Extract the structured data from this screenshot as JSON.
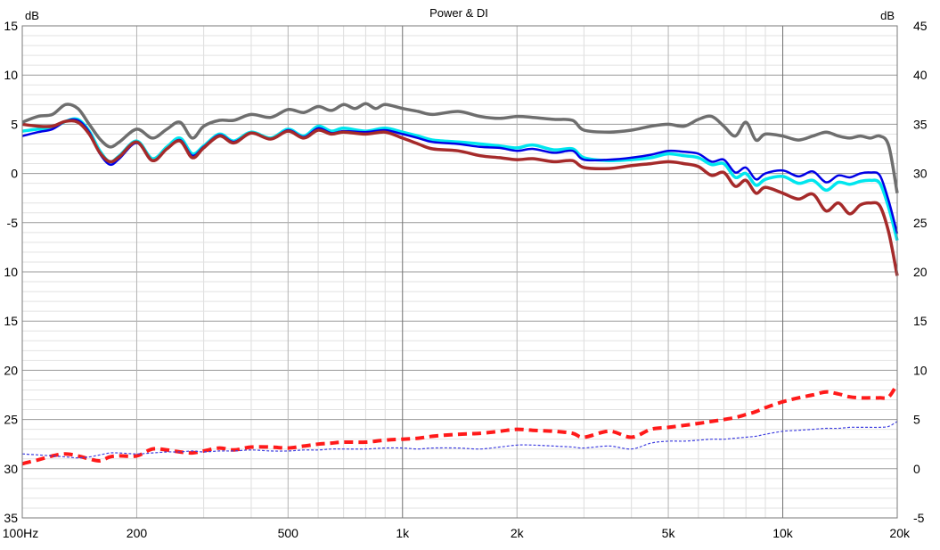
{
  "chart_data": {
    "type": "line",
    "title": "Power & DI",
    "left_unit": "dB",
    "right_unit": "dB",
    "x_scale": "log",
    "xlim": [
      100,
      20000
    ],
    "ylim_left": [
      -35,
      15
    ],
    "ylim_right": [
      -5,
      45
    ],
    "grid": true,
    "x_ticks": [
      {
        "value": 100,
        "label": "100Hz"
      },
      {
        "value": 200,
        "label": "200"
      },
      {
        "value": 500,
        "label": "500"
      },
      {
        "value": 1000,
        "label": "1k"
      },
      {
        "value": 2000,
        "label": "2k"
      },
      {
        "value": 5000,
        "label": "5k"
      },
      {
        "value": 10000,
        "label": "10k"
      },
      {
        "value": 20000,
        "label": "20k"
      }
    ],
    "left_ticks": [
      {
        "value": 15,
        "label": "15"
      },
      {
        "value": 10,
        "label": "10"
      },
      {
        "value": 5,
        "label": "5"
      },
      {
        "value": 0,
        "label": "0"
      },
      {
        "value": -5,
        "label": "-5"
      },
      {
        "value": -10,
        "label": "10"
      },
      {
        "value": -15,
        "label": "15"
      },
      {
        "value": -20,
        "label": "20"
      },
      {
        "value": -25,
        "label": "25"
      },
      {
        "value": -30,
        "label": "30"
      },
      {
        "value": -35,
        "label": "35"
      }
    ],
    "right_ticks": [
      {
        "value": 45,
        "label": "45"
      },
      {
        "value": 40,
        "label": "40"
      },
      {
        "value": 35,
        "label": "35"
      },
      {
        "value": 30,
        "label": "30"
      },
      {
        "value": 25,
        "label": "25"
      },
      {
        "value": 20,
        "label": "20"
      },
      {
        "value": 15,
        "label": "15"
      },
      {
        "value": 10,
        "label": "10"
      },
      {
        "value": 5,
        "label": "5"
      },
      {
        "value": 0,
        "label": "0"
      },
      {
        "value": -5,
        "label": "-5"
      }
    ],
    "series": [
      {
        "color": "#00e6ee",
        "width": 3.5,
        "dash": "",
        "axis": "left",
        "x": [
          100,
          110,
          120,
          130,
          140,
          150,
          160,
          170,
          180,
          200,
          220,
          240,
          260,
          280,
          300,
          330,
          360,
          400,
          450,
          500,
          550,
          600,
          650,
          700,
          800,
          900,
          1000,
          1100,
          1200,
          1400,
          1600,
          1800,
          2000,
          2200,
          2500,
          2800,
          3000,
          3500,
          4000,
          4500,
          5000,
          5500,
          6000,
          6500,
          7000,
          7500,
          8000,
          8500,
          9000,
          10000,
          11000,
          12000,
          13000,
          14000,
          15000,
          16000,
          17000,
          18000,
          19000,
          20000
        ],
        "y": [
          4.3,
          4.5,
          4.6,
          5.3,
          5.5,
          4.3,
          2.3,
          1.2,
          1.8,
          3.3,
          1.5,
          2.7,
          3.6,
          2.0,
          2.8,
          4.0,
          3.3,
          4.2,
          3.6,
          4.5,
          3.8,
          4.8,
          4.3,
          4.6,
          4.3,
          4.6,
          4.2,
          3.8,
          3.4,
          3.2,
          3.0,
          2.8,
          2.6,
          2.9,
          2.4,
          2.5,
          1.6,
          1.3,
          1.4,
          1.6,
          2.0,
          1.8,
          1.6,
          0.9,
          1.0,
          -0.4,
          0.0,
          -1.2,
          -0.6,
          -0.3,
          -1.0,
          -0.7,
          -1.7,
          -0.9,
          -1.1,
          -0.8,
          -0.7,
          -1.0,
          -3.5,
          -6.8
        ]
      },
      {
        "color": "#0000e6",
        "width": 2.5,
        "dash": "",
        "axis": "left",
        "x": [
          100,
          110,
          120,
          130,
          140,
          150,
          160,
          170,
          180,
          200,
          220,
          240,
          260,
          280,
          300,
          330,
          360,
          400,
          450,
          500,
          550,
          600,
          650,
          700,
          800,
          900,
          1000,
          1100,
          1200,
          1400,
          1600,
          1800,
          2000,
          2200,
          2500,
          2800,
          3000,
          3500,
          4000,
          4500,
          5000,
          5500,
          6000,
          6500,
          7000,
          7500,
          8000,
          8500,
          9000,
          10000,
          11000,
          12000,
          13000,
          14000,
          15000,
          16000,
          17000,
          18000,
          19000,
          20000
        ],
        "y": [
          3.8,
          4.2,
          4.5,
          5.3,
          5.4,
          4.2,
          2.0,
          0.9,
          1.5,
          3.1,
          1.3,
          2.5,
          3.4,
          1.8,
          2.7,
          3.9,
          3.2,
          4.1,
          3.5,
          4.4,
          3.7,
          4.6,
          4.1,
          4.3,
          4.2,
          4.4,
          4.0,
          3.6,
          3.2,
          3.0,
          2.7,
          2.6,
          2.3,
          2.5,
          2.1,
          2.3,
          1.4,
          1.4,
          1.6,
          1.9,
          2.3,
          2.2,
          2.0,
          1.2,
          1.4,
          0.1,
          0.6,
          -0.6,
          0.0,
          0.3,
          -0.3,
          0.2,
          -0.9,
          -0.2,
          -0.4,
          0.0,
          0.1,
          -0.2,
          -2.8,
          -6.1
        ]
      },
      {
        "color": "#a52a2a",
        "width": 3.5,
        "dash": "",
        "axis": "left",
        "x": [
          100,
          110,
          120,
          130,
          140,
          150,
          160,
          170,
          180,
          200,
          220,
          240,
          260,
          280,
          300,
          330,
          360,
          400,
          450,
          500,
          550,
          600,
          650,
          700,
          800,
          900,
          1000,
          1100,
          1200,
          1400,
          1600,
          1800,
          2000,
          2200,
          2500,
          2800,
          3000,
          3500,
          4000,
          4500,
          5000,
          5500,
          6000,
          6500,
          7000,
          7500,
          8000,
          8500,
          9000,
          10000,
          11000,
          12000,
          13000,
          14000,
          15000,
          16000,
          17000,
          18000,
          19000,
          20000
        ],
        "y": [
          5.0,
          4.8,
          4.8,
          5.3,
          5.2,
          4.0,
          2.1,
          1.2,
          1.7,
          3.2,
          1.3,
          2.5,
          3.3,
          1.6,
          2.6,
          3.8,
          3.1,
          4.1,
          3.5,
          4.3,
          3.6,
          4.4,
          4.0,
          4.2,
          4.0,
          4.2,
          3.6,
          3.0,
          2.5,
          2.3,
          1.8,
          1.6,
          1.4,
          1.5,
          1.2,
          1.3,
          0.6,
          0.5,
          0.8,
          1.0,
          1.2,
          1.0,
          0.7,
          -0.2,
          0.1,
          -1.3,
          -0.7,
          -2.0,
          -1.4,
          -2.0,
          -2.6,
          -2.1,
          -3.8,
          -3.0,
          -4.1,
          -3.2,
          -3.0,
          -3.3,
          -6.0,
          -10.4
        ]
      },
      {
        "color": "#6e6e6e",
        "width": 3.5,
        "dash": "",
        "axis": "left",
        "x": [
          100,
          110,
          120,
          130,
          140,
          150,
          160,
          170,
          180,
          200,
          220,
          240,
          260,
          280,
          300,
          330,
          360,
          400,
          450,
          500,
          550,
          600,
          650,
          700,
          750,
          800,
          850,
          900,
          1000,
          1100,
          1200,
          1400,
          1600,
          1800,
          2000,
          2200,
          2500,
          2800,
          3000,
          3500,
          4000,
          4500,
          5000,
          5500,
          6000,
          6500,
          7000,
          7500,
          8000,
          8500,
          9000,
          10000,
          11000,
          12000,
          13000,
          14000,
          15000,
          16000,
          17000,
          18000,
          19000,
          20000
        ],
        "y": [
          5.2,
          5.8,
          6.0,
          7.0,
          6.6,
          5.0,
          3.5,
          2.7,
          3.2,
          4.5,
          3.6,
          4.5,
          5.2,
          3.6,
          4.8,
          5.4,
          5.4,
          6.0,
          5.7,
          6.5,
          6.2,
          6.8,
          6.4,
          7.0,
          6.6,
          7.1,
          6.6,
          7.0,
          6.6,
          6.3,
          6.0,
          6.3,
          5.8,
          5.6,
          5.8,
          5.7,
          5.5,
          5.4,
          4.4,
          4.2,
          4.4,
          4.8,
          5.0,
          4.8,
          5.5,
          5.8,
          4.8,
          3.8,
          5.2,
          3.4,
          4.0,
          3.8,
          3.4,
          3.8,
          4.2,
          3.8,
          3.6,
          3.8,
          3.6,
          3.8,
          2.8,
          -2.0
        ]
      },
      {
        "color": "#ff1a1a",
        "width": 4,
        "dash": "10,6",
        "axis": "right",
        "x": [
          100,
          110,
          120,
          130,
          140,
          150,
          160,
          170,
          180,
          200,
          220,
          240,
          260,
          280,
          300,
          330,
          360,
          400,
          450,
          500,
          550,
          600,
          650,
          700,
          800,
          900,
          1000,
          1100,
          1200,
          1400,
          1600,
          1800,
          2000,
          2200,
          2500,
          2800,
          3000,
          3500,
          4000,
          4500,
          5000,
          5500,
          6000,
          6500,
          7000,
          7500,
          8000,
          8500,
          9000,
          10000,
          11000,
          12000,
          13000,
          14000,
          15000,
          16000,
          17000,
          18000,
          19000,
          20000
        ],
        "y": [
          0.5,
          0.9,
          1.3,
          1.5,
          1.3,
          1.0,
          0.8,
          1.2,
          1.3,
          1.3,
          2.0,
          1.9,
          1.7,
          1.6,
          1.8,
          2.1,
          1.9,
          2.2,
          2.2,
          2.1,
          2.3,
          2.5,
          2.6,
          2.7,
          2.7,
          2.9,
          3.0,
          3.1,
          3.3,
          3.5,
          3.6,
          3.8,
          4.0,
          3.9,
          3.8,
          3.6,
          3.2,
          3.8,
          3.2,
          4.0,
          4.2,
          4.4,
          4.6,
          4.8,
          5.0,
          5.2,
          5.5,
          5.8,
          6.2,
          6.8,
          7.2,
          7.5,
          7.8,
          7.6,
          7.3,
          7.2,
          7.2,
          7.2,
          7.3,
          8.6
        ]
      },
      {
        "color": "#4040e0",
        "width": 1.2,
        "dash": "3,2",
        "axis": "right",
        "x": [
          100,
          110,
          120,
          130,
          140,
          150,
          160,
          170,
          180,
          200,
          220,
          240,
          260,
          280,
          300,
          330,
          360,
          400,
          450,
          500,
          550,
          600,
          650,
          700,
          800,
          900,
          1000,
          1100,
          1200,
          1400,
          1600,
          1800,
          2000,
          2200,
          2500,
          2800,
          3000,
          3500,
          4000,
          4500,
          5000,
          5500,
          6000,
          6500,
          7000,
          7500,
          8000,
          8500,
          9000,
          10000,
          11000,
          12000,
          13000,
          14000,
          15000,
          16000,
          17000,
          18000,
          19000,
          20000
        ],
        "y": [
          1.5,
          1.4,
          1.3,
          1.2,
          1.1,
          1.2,
          1.4,
          1.6,
          1.6,
          1.5,
          1.6,
          1.7,
          1.7,
          1.8,
          1.7,
          1.8,
          1.8,
          1.9,
          1.8,
          1.8,
          1.9,
          1.9,
          2.0,
          2.0,
          2.0,
          2.1,
          2.1,
          2.0,
          2.1,
          2.1,
          2.0,
          2.2,
          2.4,
          2.4,
          2.3,
          2.2,
          2.1,
          2.3,
          2.0,
          2.6,
          2.8,
          2.8,
          2.9,
          3.0,
          3.0,
          3.1,
          3.2,
          3.3,
          3.5,
          3.8,
          3.9,
          4.0,
          4.1,
          4.1,
          4.2,
          4.2,
          4.2,
          4.2,
          4.3,
          4.8
        ]
      }
    ]
  }
}
